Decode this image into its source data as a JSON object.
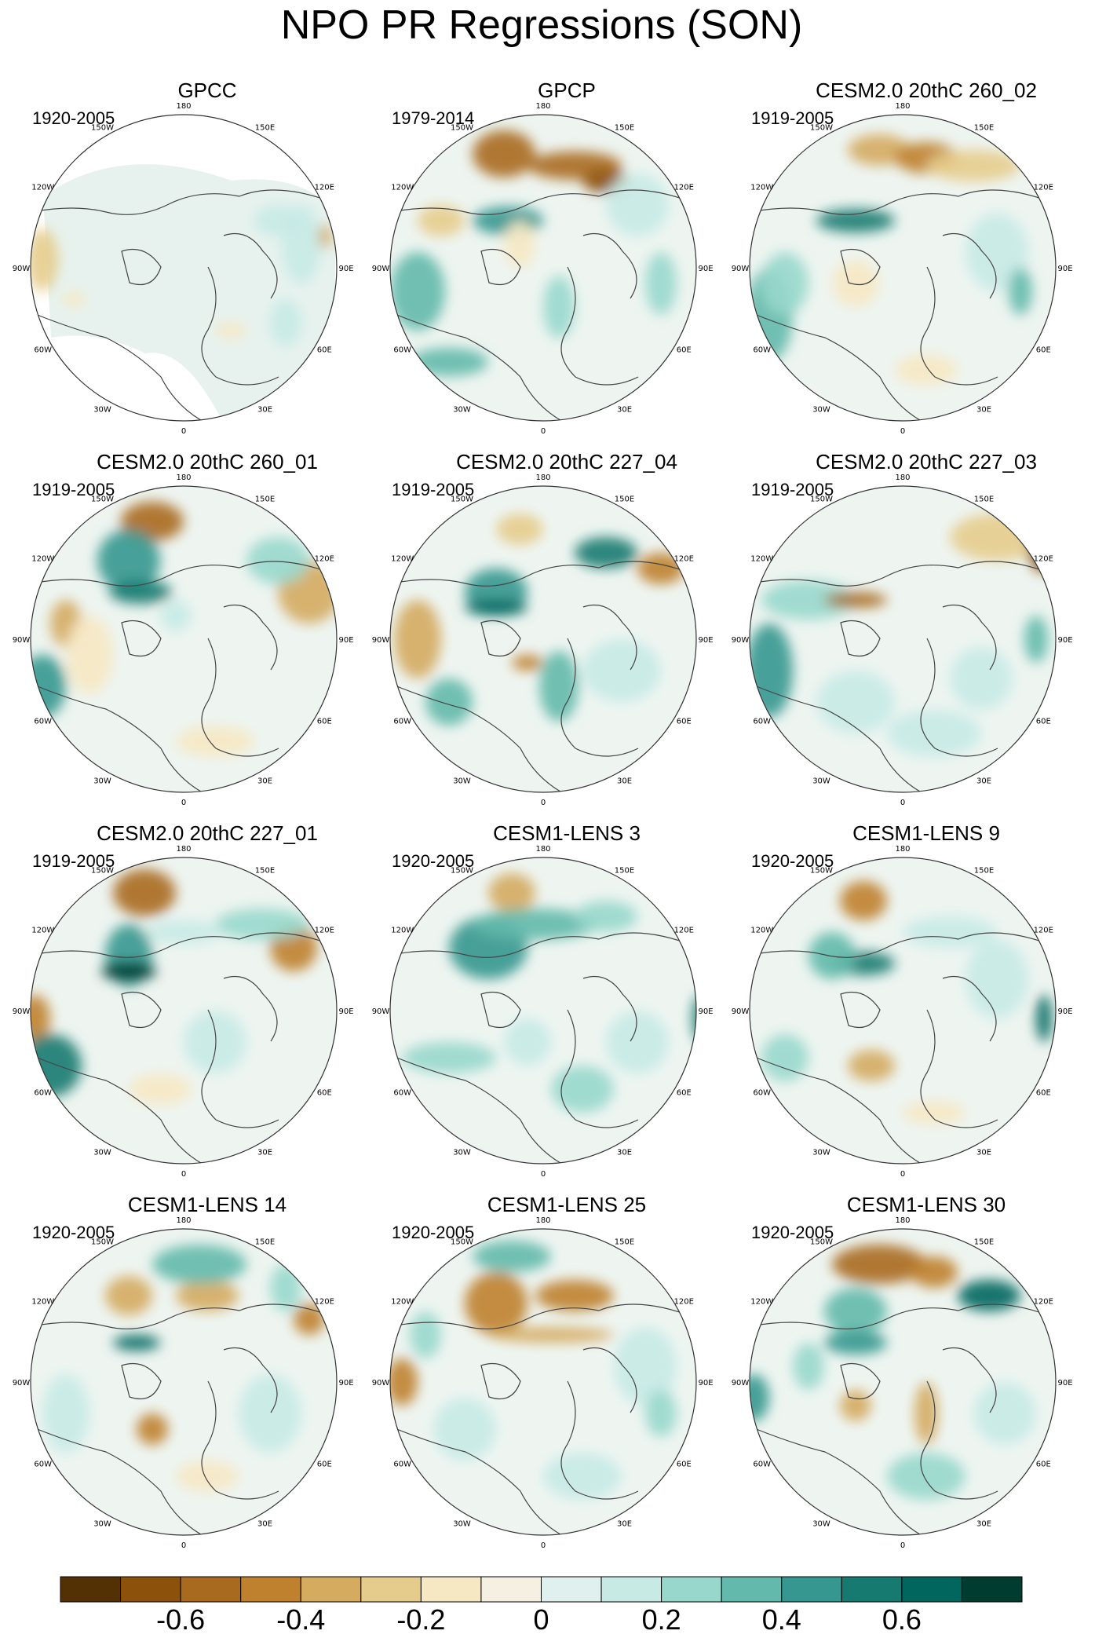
{
  "figure": {
    "title": "NPO PR Regressions (SON)"
  },
  "longitude_labels": [
    "180",
    "150E",
    "120E",
    "90E",
    "60E",
    "30E",
    "0",
    "30W",
    "60W",
    "90W",
    "120W",
    "150W"
  ],
  "panels": [
    {
      "title": "GPCC",
      "years": "1920-2005",
      "pattern": "gpcc"
    },
    {
      "title": "GPCP",
      "years": "1979-2014",
      "pattern": "gpcp"
    },
    {
      "title": "CESM2.0 20thC 260_02",
      "years": "1919-2005",
      "pattern": "p3"
    },
    {
      "title": "CESM2.0 20thC 260_01",
      "years": "1919-2005",
      "pattern": "p4"
    },
    {
      "title": "CESM2.0 20thC 227_04",
      "years": "1919-2005",
      "pattern": "p5"
    },
    {
      "title": "CESM2.0 20thC 227_03",
      "years": "1919-2005",
      "pattern": "p6"
    },
    {
      "title": "CESM2.0 20thC 227_01",
      "years": "1919-2005",
      "pattern": "p7"
    },
    {
      "title": "CESM1-LENS 3",
      "years": "1920-2005",
      "pattern": "p8"
    },
    {
      "title": "CESM1-LENS 9",
      "years": "1920-2005",
      "pattern": "p9"
    },
    {
      "title": "CESM1-LENS 14",
      "years": "1920-2005",
      "pattern": "p10"
    },
    {
      "title": "CESM1-LENS 25",
      "years": "1920-2005",
      "pattern": "p11"
    },
    {
      "title": "CESM1-LENS 30",
      "years": "1920-2005",
      "pattern": "p12"
    }
  ],
  "colorbar": {
    "colors": [
      "#543005",
      "#8c510a",
      "#a86a1e",
      "#bf812d",
      "#d4ab5f",
      "#e6cc8c",
      "#f6e8c3",
      "#f5f0e1",
      "#e0f0ee",
      "#c7eae5",
      "#98d8cc",
      "#63b9ab",
      "#35978f",
      "#167a70",
      "#01665e",
      "#003c30"
    ],
    "tick_labels": [
      "-0.6",
      "-0.4",
      "-0.2",
      "0",
      "0.2",
      "0.4",
      "0.6"
    ],
    "tick_values": [
      -0.6,
      -0.4,
      -0.2,
      0,
      0.2,
      0.4,
      0.6
    ],
    "min": -0.8,
    "max": 0.8
  }
}
